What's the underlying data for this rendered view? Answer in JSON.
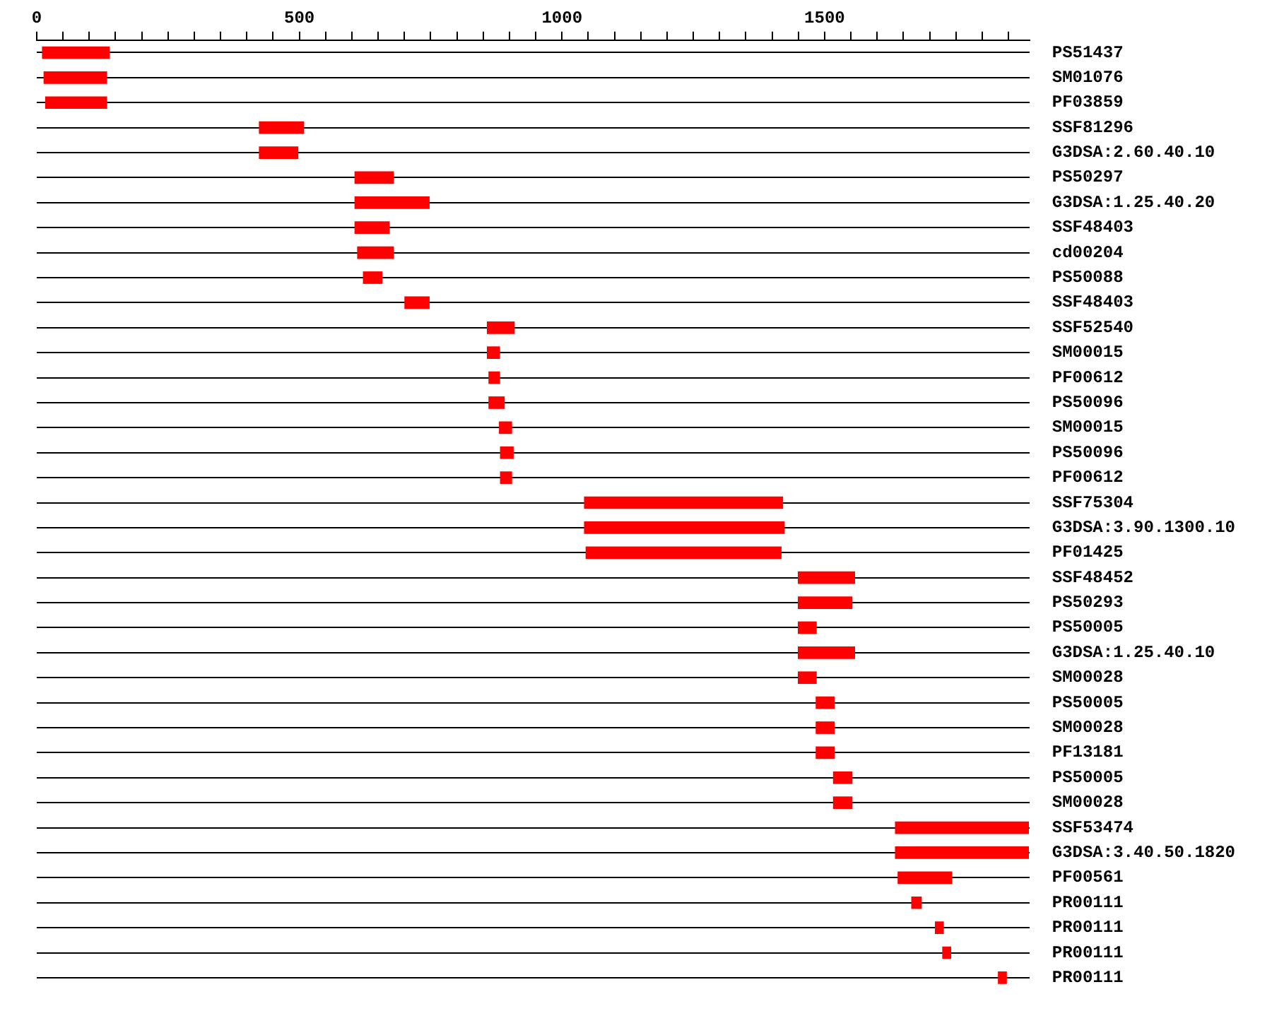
{
  "chart_data": {
    "type": "bar",
    "orientation": "horizontal",
    "grid": "y",
    "legend": false,
    "categories": [
      "PS51437",
      "SM01076",
      "PF03859",
      "SSF81296",
      "G3DSA:2.60.40.10",
      "PS50297",
      "G3DSA:1.25.40.20",
      "SSF48403",
      "cd00204",
      "PS50088",
      "SSF48403",
      "SSF52540",
      "SM00015",
      "PF00612",
      "PS50096",
      "SM00015",
      "PS50096",
      "PF00612",
      "SSF75304",
      "G3DSA:3.90.1300.10",
      "PF01425",
      "SSF48452",
      "PS50293",
      "PS50005",
      "G3DSA:1.25.40.10",
      "SM00028",
      "PS50005",
      "SM00028",
      "PF13181",
      "PS50005",
      "SM00028",
      "SSF53474",
      "G3DSA:3.40.50.1820",
      "PF00561",
      "PR00111",
      "PR00111",
      "PR00111",
      "PR00111"
    ],
    "base": [
      10,
      13,
      16,
      423,
      423,
      605,
      605,
      605,
      610,
      621,
      700,
      857,
      857,
      860,
      860,
      880,
      882,
      882,
      1042,
      1042,
      1045,
      1449,
      1449,
      1449,
      1449,
      1449,
      1483,
      1483,
      1483,
      1516,
      1516,
      1634,
      1634,
      1639,
      1665,
      1710,
      1724,
      1830
    ],
    "values": [
      129,
      121,
      118,
      86,
      75,
      75,
      143,
      67,
      70,
      37,
      48,
      53,
      25,
      22,
      31,
      25,
      26,
      23,
      379,
      382,
      373,
      109,
      104,
      36,
      109,
      36,
      36,
      36,
      36,
      37,
      37,
      255,
      255,
      104,
      20,
      17,
      17,
      17
    ],
    "color": "#ff0000",
    "xlim": [
      0,
      1890
    ],
    "xticks": [
      0,
      {
        "value": 50,
        "label": null
      },
      {
        "value": 100,
        "label": null
      },
      {
        "value": 150,
        "label": null
      },
      {
        "value": 200,
        "label": null
      },
      {
        "value": 250,
        "label": null
      },
      {
        "value": 300,
        "label": null
      },
      {
        "value": 350,
        "label": null
      },
      {
        "value": 400,
        "label": null
      },
      {
        "value": 450,
        "label": null
      },
      500,
      {
        "value": 550,
        "label": null
      },
      {
        "value": 600,
        "label": null
      },
      {
        "value": 650,
        "label": null
      },
      {
        "value": 700,
        "label": null
      },
      {
        "value": 750,
        "label": null
      },
      {
        "value": 800,
        "label": null
      },
      {
        "value": 850,
        "label": null
      },
      {
        "value": 900,
        "label": null
      },
      {
        "value": 950,
        "label": null
      },
      1000,
      {
        "value": 1050,
        "label": null
      },
      {
        "value": 1100,
        "label": null
      },
      {
        "value": 1150,
        "label": null
      },
      {
        "value": 1200,
        "label": null
      },
      {
        "value": 1250,
        "label": null
      },
      {
        "value": 1300,
        "label": null
      },
      {
        "value": 1350,
        "label": null
      },
      {
        "value": 1400,
        "label": null
      },
      {
        "value": 1450,
        "label": null
      },
      1500,
      {
        "value": 1550,
        "label": null
      },
      {
        "value": 1600,
        "label": null
      },
      {
        "value": 1650,
        "label": null
      },
      {
        "value": 1700,
        "label": null
      },
      {
        "value": 1750,
        "label": null
      },
      {
        "value": 1800,
        "label": null
      },
      {
        "value": 1850,
        "label": null
      }
    ]
  }
}
